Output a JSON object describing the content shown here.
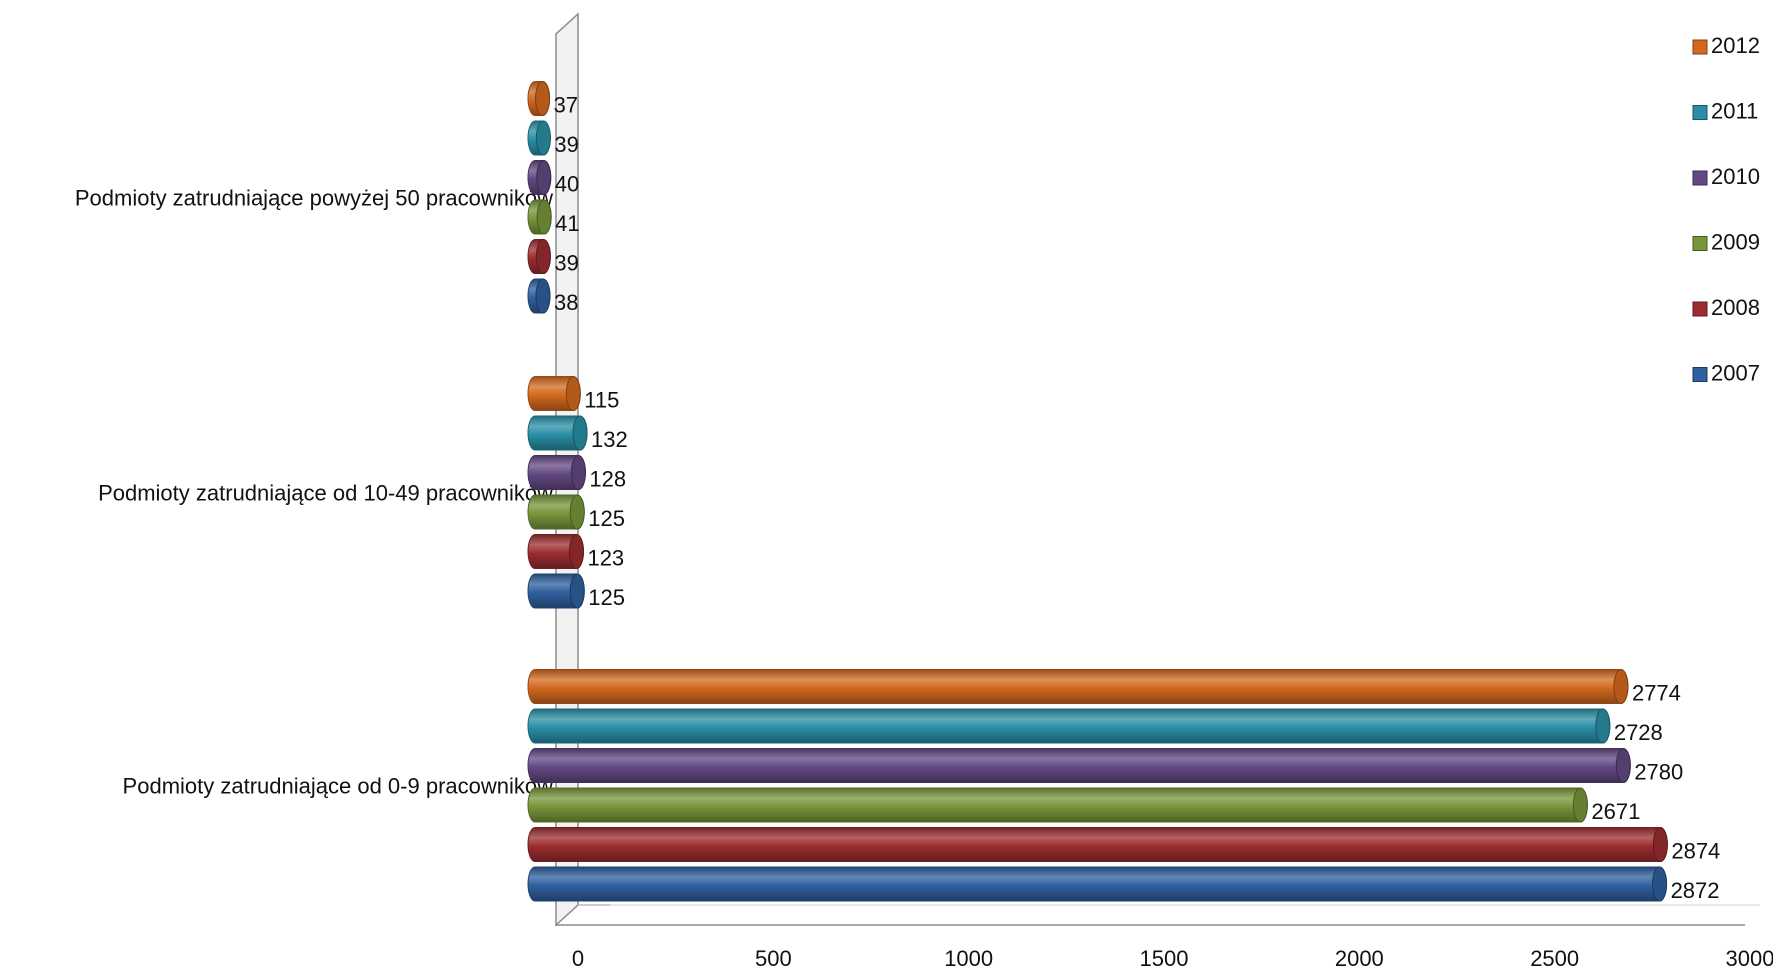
{
  "chart_data": {
    "type": "bar",
    "orientation": "horizontal",
    "style": "3d-cylinder",
    "categories": [
      "Podmioty zatrudniające od 0-9 pracowników",
      "Podmioty zatrudniające od 10-49 pracowników",
      "Podmioty zatrudniające powyżej 50 pracowników"
    ],
    "series": [
      {
        "name": "2007",
        "color": "#2f5f9e",
        "values": [
          2872,
          125,
          38
        ]
      },
      {
        "name": "2008",
        "color": "#9b2d30",
        "values": [
          2874,
          123,
          39
        ]
      },
      {
        "name": "2009",
        "color": "#77963a",
        "values": [
          2671,
          125,
          41
        ]
      },
      {
        "name": "2010",
        "color": "#634883",
        "values": [
          2780,
          128,
          40
        ]
      },
      {
        "name": "2011",
        "color": "#2a8fa6",
        "values": [
          2728,
          132,
          39
        ]
      },
      {
        "name": "2012",
        "color": "#d2691e",
        "values": [
          2774,
          115,
          37
        ]
      }
    ],
    "x_ticks": [
      "0",
      "500",
      "1000",
      "1500",
      "2000",
      "2500",
      "3000"
    ],
    "xlim": [
      0,
      3000
    ],
    "title": "",
    "xlabel": "",
    "ylabel": "",
    "grid": false,
    "legend_position": "right",
    "legend_order": [
      "2012",
      "2011",
      "2010",
      "2009",
      "2008",
      "2007"
    ]
  }
}
